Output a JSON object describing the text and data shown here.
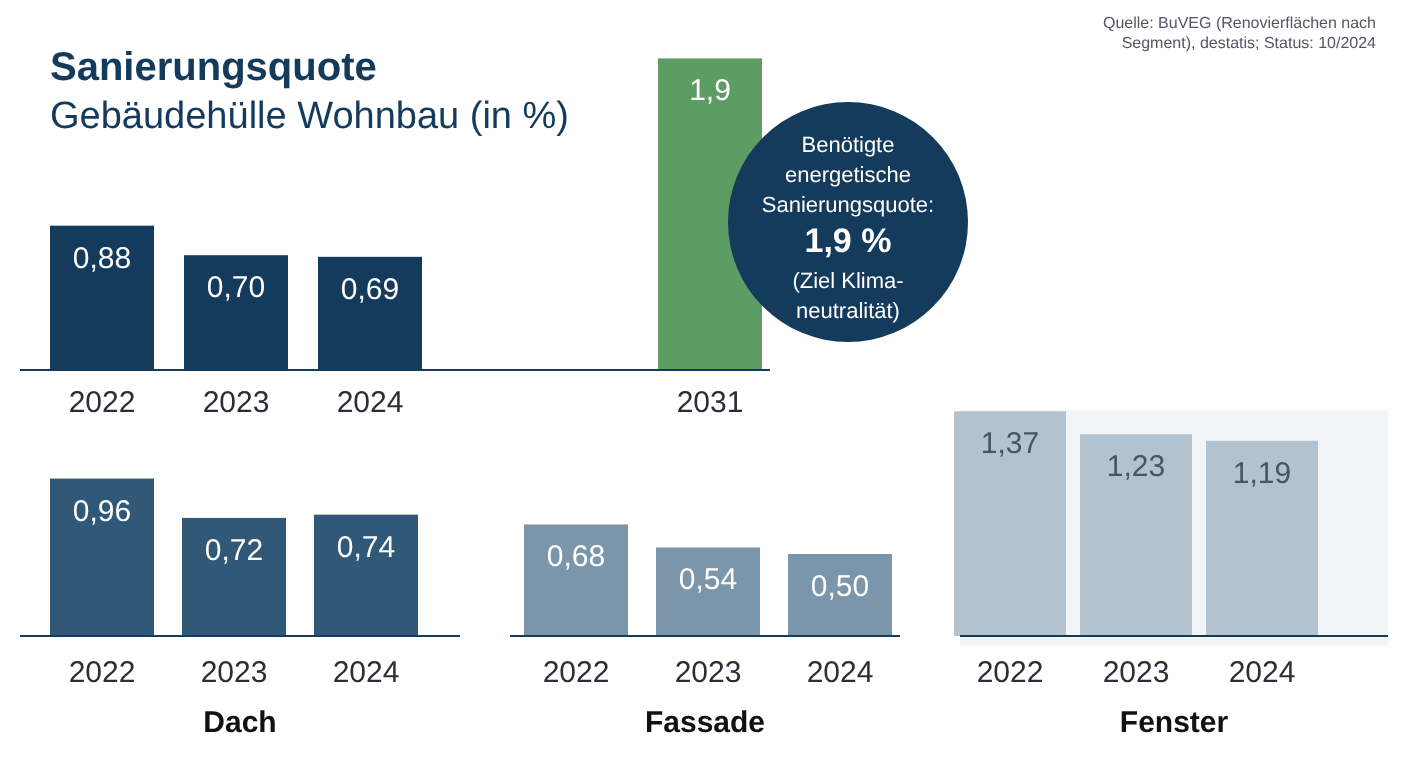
{
  "chart_data": [
    {
      "type": "bar",
      "title": "Sanierungsquote",
      "subtitle": "Gebäudehülle Wohnbau (in %)",
      "categories": [
        "2022",
        "2023",
        "2024"
      ],
      "values": [
        0.88,
        0.7,
        0.69
      ],
      "color": "#143a5c",
      "value_labels": [
        "0,88",
        "0,70",
        "0,69"
      ],
      "annotations": [
        "Quelle: BuVEG (Renovierflächen nach\nSegment), destatis; Status: 10/2024"
      ]
    },
    {
      "type": "bar",
      "categories": [
        "2031"
      ],
      "values": [
        1.9
      ],
      "color": "#5d9c62",
      "value_labels": [
        "1,9"
      ],
      "annotations": [
        "Benötigte\nenergetische\nSanierungsquote:\n1,9 %\n(Ziel Klima-\nneutralität)"
      ]
    },
    {
      "type": "bar",
      "xlabel": "Dach",
      "categories": [
        "2022",
        "2023",
        "2024"
      ],
      "values": [
        0.96,
        0.72,
        0.74
      ],
      "color": "#325877",
      "value_labels": [
        "0,96",
        "0,72",
        "0,74"
      ]
    },
    {
      "type": "bar",
      "xlabel": "Fassade",
      "categories": [
        "2022",
        "2023",
        "2024"
      ],
      "values": [
        0.68,
        0.54,
        0.5
      ],
      "color": "#7b95aa",
      "value_labels": [
        "0,68",
        "0,54",
        "0,50"
      ]
    },
    {
      "type": "bar",
      "xlabel": "Fenster",
      "categories": [
        "2022",
        "2023",
        "2024"
      ],
      "values": [
        1.37,
        1.23,
        1.19
      ],
      "color": "#b3c2cf",
      "value_labels": [
        "1,37",
        "1,23",
        "1,19"
      ]
    }
  ]
}
